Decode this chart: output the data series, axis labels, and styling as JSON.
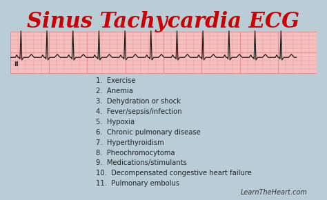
{
  "title": "Sinus Tachycardia ECG",
  "title_color": "#cc0000",
  "title_fontsize": 22,
  "title_fontweight": "bold",
  "title_fontstyle": "italic",
  "background_color": "#b8cdd6",
  "ecg_bg_color": "#f5c0c0",
  "ecg_grid_color": "#e89090",
  "ecg_line_color": "#1a1a1a",
  "ecg_label": "II",
  "items": [
    "1.  Exercise",
    "2.  Anemia",
    "3.  Dehydration or shock",
    "4.  Fever/sepsis/infection",
    "5.  Hypoxia",
    "6.  Chronic pulmonary disease",
    "7.  Hyperthyroidism",
    "8.  Pheochromocytoma",
    "9.  Medications/stimulants",
    "10.  Decompensated congestive heart failure",
    "11.  Pulmonary embolus"
  ],
  "watermark": "LearnTheHeart.com",
  "text_color": "#222222",
  "text_fontsize": 7.2,
  "watermark_fontsize": 7.0,
  "watermark_color": "#333333"
}
